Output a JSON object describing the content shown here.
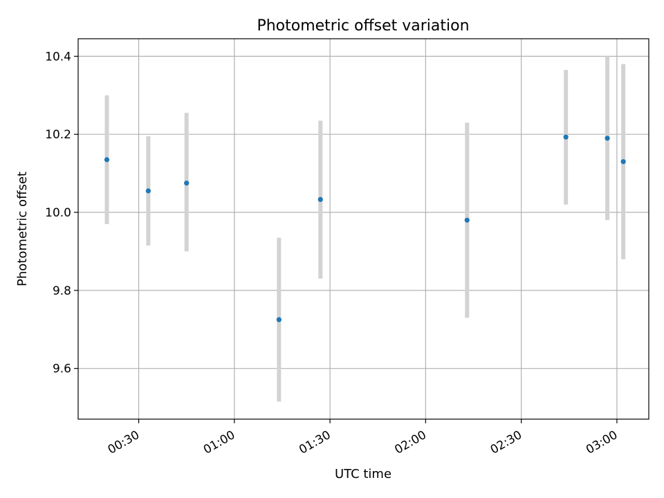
{
  "chart_data": {
    "type": "scatter",
    "title": "Photometric offset variation",
    "xlabel": "UTC time",
    "ylabel": "Photometric offset",
    "x_tick_labels": [
      "00:30",
      "01:00",
      "01:30",
      "02:00",
      "02:30",
      "03:00"
    ],
    "y_tick_labels": [
      "9.6",
      "9.8",
      "10.0",
      "10.2",
      "10.4"
    ],
    "y_ticks": [
      9.6,
      9.8,
      10.0,
      10.2,
      10.4
    ],
    "xlim": [
      "00:11",
      "03:10"
    ],
    "ylim": [
      9.47,
      10.445
    ],
    "grid": true,
    "series": [
      {
        "points": [
          {
            "x": "00:20",
            "y": 10.135,
            "ymin": 9.97,
            "ymax": 10.3
          },
          {
            "x": "00:33",
            "y": 10.055,
            "ymin": 9.915,
            "ymax": 10.195
          },
          {
            "x": "00:45",
            "y": 10.075,
            "ymin": 9.9,
            "ymax": 10.255
          },
          {
            "x": "01:14",
            "y": 9.725,
            "ymin": 9.515,
            "ymax": 9.935
          },
          {
            "x": "01:27",
            "y": 10.033,
            "ymin": 9.83,
            "ymax": 10.235
          },
          {
            "x": "02:13",
            "y": 9.98,
            "ymin": 9.73,
            "ymax": 10.23
          },
          {
            "x": "02:44",
            "y": 10.193,
            "ymin": 10.02,
            "ymax": 10.365
          },
          {
            "x": "02:57",
            "y": 10.19,
            "ymin": 9.98,
            "ymax": 10.4
          },
          {
            "x": "03:02",
            "y": 10.13,
            "ymin": 9.88,
            "ymax": 10.38
          }
        ]
      }
    ],
    "colors": {
      "point": "#1f77b4",
      "errorbar": "#d3d3d3",
      "grid": "#b0b0b0",
      "axis": "#000000"
    }
  }
}
